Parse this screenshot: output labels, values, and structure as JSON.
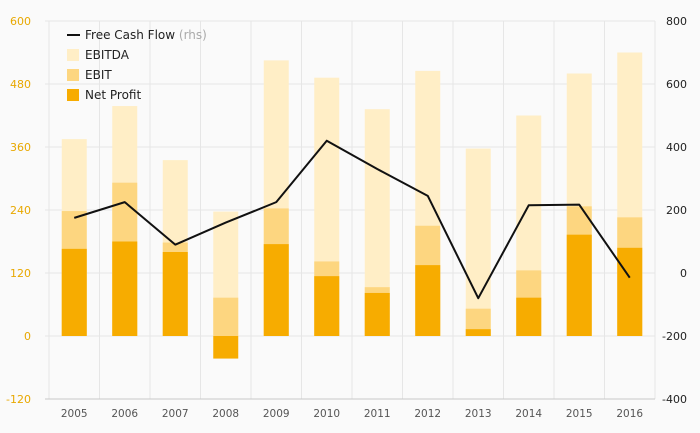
{
  "chart_data": {
    "type": "bar",
    "categories": [
      "2005",
      "2006",
      "2007",
      "2008",
      "2009",
      "2010",
      "2011",
      "2012",
      "2013",
      "2014",
      "2015",
      "2016"
    ],
    "series": [
      {
        "name": "EBITDA",
        "axis": "left",
        "color": "#ffeec6",
        "values": [
          375,
          438,
          335,
          237,
          525,
          492,
          432,
          505,
          357,
          420,
          500,
          540
        ]
      },
      {
        "name": "EBIT",
        "axis": "left",
        "color": "#fdd680",
        "values": [
          238,
          292,
          178,
          73,
          243,
          142,
          93,
          210,
          52,
          125,
          247,
          226
        ]
      },
      {
        "name": "Net Profit",
        "axis": "left",
        "color": "#f7ac00",
        "values": [
          166,
          180,
          160,
          -43,
          175,
          114,
          82,
          135,
          13,
          73,
          193,
          168
        ]
      },
      {
        "name": "Free Cash Flow",
        "suffix": "(rhs)",
        "axis": "right",
        "type": "line",
        "color": "#111111",
        "values": [
          175,
          225,
          90,
          160,
          225,
          420,
          330,
          245,
          -80,
          215,
          217,
          -15
        ]
      }
    ],
    "yLeft": {
      "min": -120,
      "max": 600,
      "ticks": [
        -120,
        0,
        120,
        240,
        360,
        480,
        600
      ]
    },
    "yRight": {
      "min": -400,
      "max": 800,
      "ticks": [
        -400,
        -200,
        0,
        200,
        400,
        600,
        800
      ]
    },
    "grid": true,
    "legend": "top-left",
    "colors": {
      "left_axis": "#e8a800",
      "right_axis": "#222222",
      "grid": "#e6e6e6"
    }
  }
}
